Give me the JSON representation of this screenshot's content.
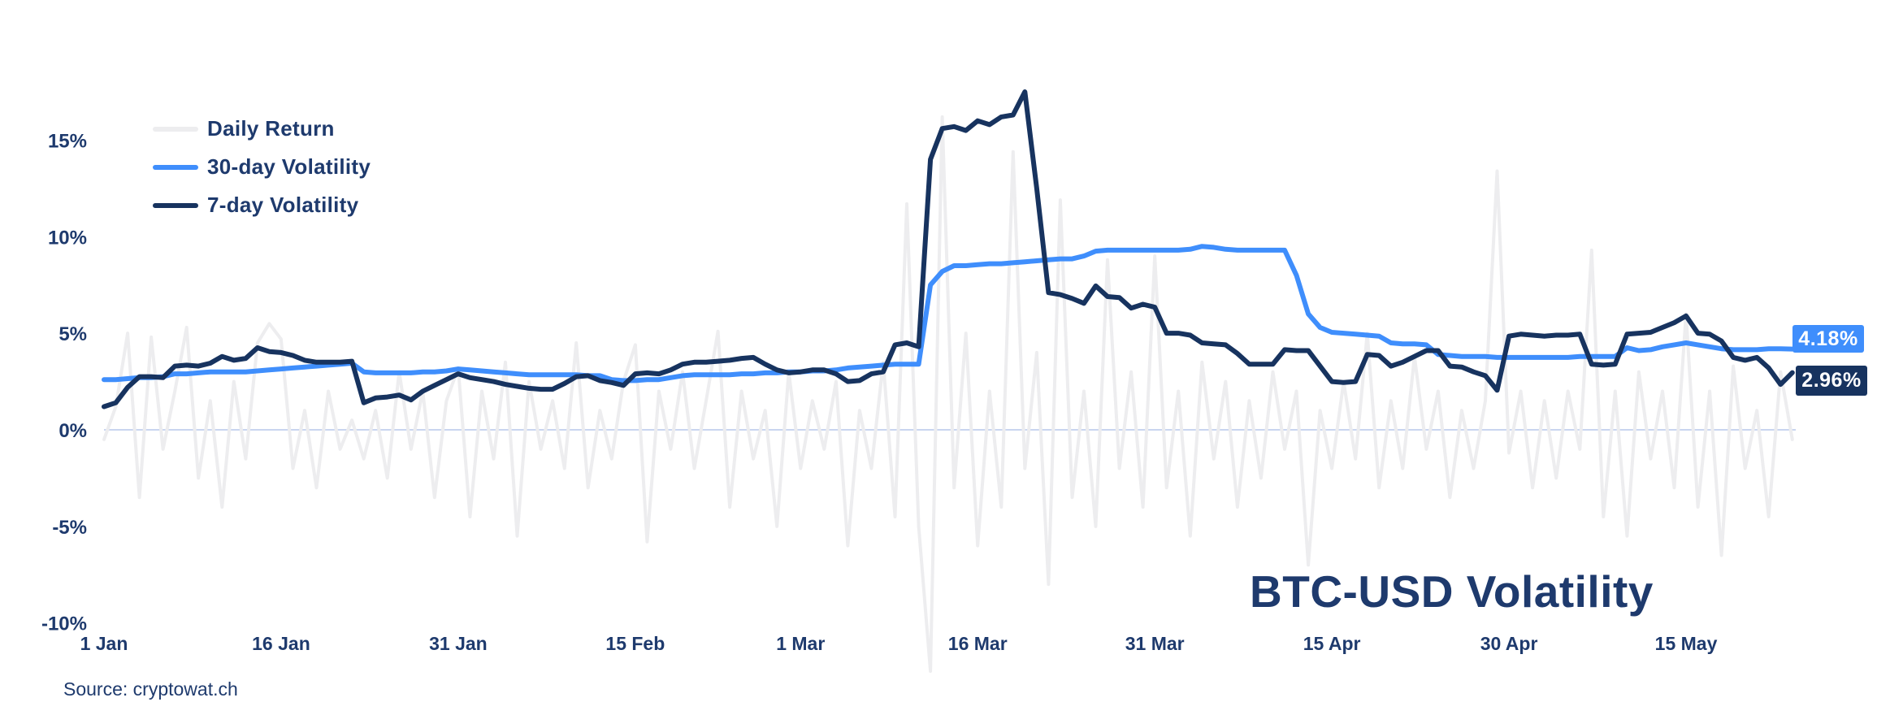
{
  "title": "BTC-USD Volatility",
  "source": "Source: cryptowat.ch",
  "colors": {
    "text_navy": "#1e3a6d",
    "line_navy": "#17335f",
    "line_blue": "#3f8efc",
    "line_gray": "#ededef",
    "zero_line": "#c9d5ef",
    "background": "#ffffff"
  },
  "legend": {
    "items": [
      {
        "label": "Daily Return",
        "color": "#ededef"
      },
      {
        "label": "30-day Volatility",
        "color": "#3f8efc"
      },
      {
        "label": "7-day Volatility",
        "color": "#17335f"
      }
    ]
  },
  "end_labels": [
    {
      "text": "4.18%",
      "color": "#3f8efc"
    },
    {
      "text": "2.96%",
      "color": "#17335f"
    }
  ],
  "chart_data": {
    "type": "line",
    "title": "BTC-USD Volatility",
    "xlabel": "",
    "ylabel": "",
    "x_unit": "days since 1 Jan",
    "x_tick_labels": [
      "1 Jan",
      "16 Jan",
      "31 Jan",
      "15 Feb",
      "1 Mar",
      "16 Mar",
      "31 Mar",
      "15 Apr",
      "30 Apr",
      "15 May"
    ],
    "x_tick_days": [
      0,
      15,
      30,
      45,
      59,
      74,
      89,
      104,
      119,
      134
    ],
    "y_tick_labels": [
      "15%",
      "10%",
      "5%",
      "0%",
      "-5%",
      "-10%"
    ],
    "y_ticks": [
      15,
      10,
      5,
      0,
      -5,
      -10
    ],
    "ylim": [
      -11,
      18
    ],
    "grid": "zero-line-only",
    "legend_position": "top-left",
    "series": [
      {
        "name": "Daily Return",
        "color": "#ededef",
        "width": 4,
        "values": [
          -0.5,
          1.2,
          5.0,
          -3.5,
          4.8,
          -1.0,
          2.0,
          5.3,
          -2.5,
          1.5,
          -4.0,
          2.5,
          -1.5,
          4.5,
          5.5,
          4.7,
          -2.0,
          1.0,
          -3.0,
          2.0,
          -1.0,
          0.5,
          -1.5,
          1.0,
          -2.5,
          3.0,
          -1.0,
          2.0,
          -3.5,
          1.5,
          3.2,
          -4.5,
          2.0,
          -1.5,
          3.5,
          -5.5,
          2.5,
          -1.0,
          1.5,
          -2.0,
          4.5,
          -3.0,
          1.0,
          -1.5,
          2.5,
          4.4,
          -5.8,
          2.0,
          -1.0,
          3.0,
          -2.0,
          1.5,
          5.1,
          -4.0,
          2.0,
          -1.5,
          1.0,
          -5.0,
          3.0,
          -2.0,
          1.5,
          -1.0,
          2.5,
          -6.0,
          1.0,
          -2.0,
          3.5,
          -4.5,
          11.7,
          -5.0,
          -12.5,
          16.2,
          -3.0,
          5.0,
          -6.0,
          2.0,
          -4.0,
          14.4,
          -2.0,
          4.0,
          -8.0,
          11.9,
          -3.5,
          2.0,
          -5.0,
          8.8,
          -2.0,
          3.0,
          -4.0,
          9.0,
          -3.0,
          2.0,
          -5.5,
          3.5,
          -1.5,
          2.5,
          -4.0,
          1.5,
          -2.5,
          3.0,
          -1.0,
          2.0,
          -7.0,
          1.0,
          -2.0,
          2.5,
          -1.5,
          5.0,
          -3.0,
          1.5,
          -2.0,
          3.8,
          -1.0,
          2.0,
          -3.5,
          1.0,
          -2.0,
          1.5,
          13.4,
          -1.2,
          2.0,
          -3.0,
          1.5,
          -2.5,
          2.0,
          -1.0,
          9.3,
          -4.5,
          2.0,
          -5.5,
          3.0,
          -1.5,
          2.0,
          -3.0,
          6.0,
          -4.0,
          2.0,
          -6.5,
          3.3,
          -2.0,
          1.0,
          -4.5,
          3.0,
          -0.5
        ]
      },
      {
        "name": "30-day Volatility",
        "color": "#3f8efc",
        "width": 6,
        "values": [
          2.6,
          2.6,
          2.65,
          2.7,
          2.7,
          2.75,
          2.9,
          2.9,
          2.95,
          3.0,
          3.0,
          3.0,
          3.0,
          3.05,
          3.1,
          3.15,
          3.2,
          3.25,
          3.3,
          3.35,
          3.4,
          3.45,
          3.0,
          2.95,
          2.95,
          2.95,
          2.95,
          3.0,
          3.0,
          3.05,
          3.15,
          3.1,
          3.05,
          3.0,
          2.95,
          2.9,
          2.85,
          2.85,
          2.85,
          2.85,
          2.85,
          2.8,
          2.8,
          2.6,
          2.55,
          2.55,
          2.6,
          2.6,
          2.7,
          2.8,
          2.85,
          2.85,
          2.85,
          2.85,
          2.9,
          2.9,
          2.95,
          2.95,
          3.0,
          3.0,
          3.05,
          3.05,
          3.1,
          3.2,
          3.25,
          3.3,
          3.35,
          3.4,
          3.4,
          3.4,
          7.5,
          8.2,
          8.5,
          8.5,
          8.55,
          8.6,
          8.6,
          8.65,
          8.7,
          8.75,
          8.8,
          8.85,
          8.85,
          9.0,
          9.25,
          9.3,
          9.3,
          9.3,
          9.3,
          9.3,
          9.3,
          9.3,
          9.35,
          9.5,
          9.45,
          9.35,
          9.3,
          9.3,
          9.3,
          9.3,
          9.3,
          8.0,
          6.0,
          5.3,
          5.05,
          5.0,
          4.95,
          4.9,
          4.85,
          4.5,
          4.45,
          4.45,
          4.4,
          3.9,
          3.85,
          3.8,
          3.8,
          3.8,
          3.75,
          3.75,
          3.75,
          3.75,
          3.75,
          3.75,
          3.75,
          3.8,
          3.8,
          3.8,
          3.8,
          4.25,
          4.1,
          4.15,
          4.3,
          4.4,
          4.5,
          4.4,
          4.3,
          4.2,
          4.15,
          4.15,
          4.15,
          4.2,
          4.2,
          4.18
        ],
        "end_value": "4.18%"
      },
      {
        "name": "7-day Volatility",
        "color": "#17335f",
        "width": 6,
        "values": [
          1.2,
          1.4,
          2.2,
          2.75,
          2.75,
          2.7,
          3.3,
          3.35,
          3.3,
          3.45,
          3.8,
          3.6,
          3.7,
          4.25,
          4.05,
          4.0,
          3.85,
          3.6,
          3.5,
          3.5,
          3.5,
          3.55,
          1.4,
          1.65,
          1.7,
          1.8,
          1.55,
          2.0,
          2.3,
          2.6,
          2.9,
          2.7,
          2.6,
          2.5,
          2.35,
          2.25,
          2.15,
          2.1,
          2.1,
          2.4,
          2.75,
          2.8,
          2.55,
          2.45,
          2.3,
          2.9,
          2.95,
          2.9,
          3.1,
          3.4,
          3.5,
          3.5,
          3.55,
          3.6,
          3.7,
          3.75,
          3.4,
          3.1,
          2.95,
          3.0,
          3.1,
          3.1,
          2.9,
          2.5,
          2.55,
          2.9,
          3.0,
          4.4,
          4.5,
          4.3,
          14.0,
          15.6,
          15.7,
          15.5,
          16.0,
          15.8,
          16.2,
          16.3,
          17.5,
          12.5,
          7.1,
          7.0,
          6.8,
          6.55,
          7.45,
          6.9,
          6.85,
          6.3,
          6.5,
          6.35,
          5.0,
          5.0,
          4.9,
          4.5,
          4.45,
          4.4,
          3.95,
          3.4,
          3.4,
          3.4,
          4.15,
          4.1,
          4.1,
          3.3,
          2.5,
          2.45,
          2.5,
          3.9,
          3.85,
          3.3,
          3.5,
          3.8,
          4.1,
          4.1,
          3.3,
          3.25,
          3.0,
          2.8,
          2.05,
          4.85,
          4.95,
          4.9,
          4.85,
          4.9,
          4.9,
          4.95,
          3.4,
          3.35,
          3.4,
          4.95,
          5.0,
          5.05,
          5.3,
          5.55,
          5.9,
          5.0,
          4.95,
          4.6,
          3.75,
          3.6,
          3.75,
          3.2,
          2.35,
          2.96
        ],
        "end_value": "2.96%"
      }
    ]
  }
}
